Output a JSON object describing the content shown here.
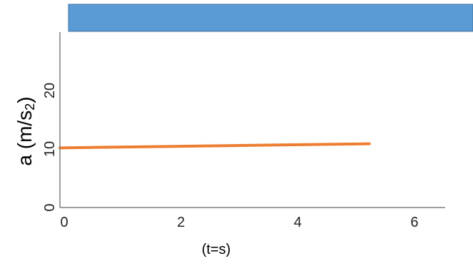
{
  "chart_data": {
    "type": "line",
    "title": "",
    "xlabel": "(t=s)",
    "ylabel_main": "a (m/s",
    "ylabel_sub": "2",
    "ylabel_close": ")",
    "xlim": [
      0,
      6.6
    ],
    "ylim": [
      0,
      30
    ],
    "xticks": [
      0,
      2,
      4,
      6
    ],
    "xtick_labels": [
      "0",
      "2",
      "4",
      "6"
    ],
    "yticks": [
      0,
      10,
      20
    ],
    "ytick_labels": [
      "0",
      "10",
      "20"
    ],
    "grid": false,
    "legend": "none",
    "series": [
      {
        "x": [
          0,
          5.3
        ],
        "y": [
          10.2,
          10.9
        ],
        "color": "#ED7D31"
      }
    ],
    "top_bar": {
      "color": "#5B9BD5",
      "border_color": "#41719C"
    }
  }
}
